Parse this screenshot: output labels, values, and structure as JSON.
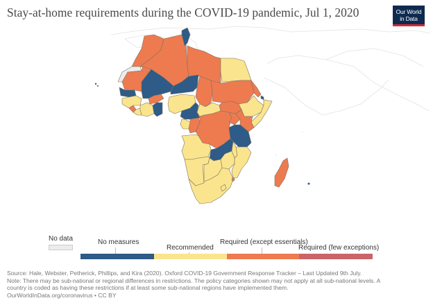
{
  "title": "Stay-at-home requirements during the COVID-19 pandemic, Jul 1, 2020",
  "logo": {
    "line1": "Our World",
    "line2": "in Data"
  },
  "colors": {
    "no_data": "#ececec",
    "no_measures": "#2e5b87",
    "recommended": "#fae58e",
    "required_except_essentials": "#ee7a50",
    "required_few_exceptions": "#c96568",
    "border": "#8a7f6a",
    "background_land": "#ffffff"
  },
  "legend": {
    "no_data": "No data",
    "categories": [
      {
        "label": "No measures",
        "key": "no_measures"
      },
      {
        "label": "Recommended",
        "key": "recommended"
      },
      {
        "label": "Required (except essentials)",
        "key": "required_except_essentials"
      },
      {
        "label": "Required (few exceptions)",
        "key": "required_few_exceptions"
      }
    ]
  },
  "countries": [
    {
      "name": "Morocco",
      "category": "required_except_essentials"
    },
    {
      "name": "Western Sahara",
      "category": "no_data"
    },
    {
      "name": "Algeria",
      "category": "required_except_essentials"
    },
    {
      "name": "Tunisia",
      "category": "no_measures"
    },
    {
      "name": "Libya",
      "category": "required_except_essentials"
    },
    {
      "name": "Egypt",
      "category": "recommended"
    },
    {
      "name": "Mauritania",
      "category": "required_except_essentials"
    },
    {
      "name": "Mali",
      "category": "no_measures"
    },
    {
      "name": "Niger",
      "category": "no_measures"
    },
    {
      "name": "Chad",
      "category": "required_except_essentials"
    },
    {
      "name": "Sudan",
      "category": "required_except_essentials"
    },
    {
      "name": "Senegal",
      "category": "no_measures"
    },
    {
      "name": "Guinea",
      "category": "recommended"
    },
    {
      "name": "Sierra Leone",
      "category": "required_except_essentials"
    },
    {
      "name": "Liberia",
      "category": "recommended"
    },
    {
      "name": "Cote d'Ivoire",
      "category": "recommended"
    },
    {
      "name": "Burkina Faso",
      "category": "required_except_essentials"
    },
    {
      "name": "Ghana",
      "category": "no_measures"
    },
    {
      "name": "Nigeria",
      "category": "recommended"
    },
    {
      "name": "Cameroon",
      "category": "no_measures"
    },
    {
      "name": "Central African Republic",
      "category": "recommended"
    },
    {
      "name": "South Sudan",
      "category": "required_except_essentials"
    },
    {
      "name": "Ethiopia",
      "category": "recommended"
    },
    {
      "name": "Eritrea",
      "category": "required_except_essentials"
    },
    {
      "name": "Djibouti",
      "category": "no_measures"
    },
    {
      "name": "Somalia",
      "category": "recommended"
    },
    {
      "name": "Gabon",
      "category": "recommended"
    },
    {
      "name": "Congo",
      "category": "required_except_essentials"
    },
    {
      "name": "Democratic Republic of Congo",
      "category": "required_except_essentials"
    },
    {
      "name": "Uganda",
      "category": "required_except_essentials"
    },
    {
      "name": "Kenya",
      "category": "required_except_essentials"
    },
    {
      "name": "Tanzania",
      "category": "no_measures"
    },
    {
      "name": "Angola",
      "category": "recommended"
    },
    {
      "name": "Zambia",
      "category": "no_measures"
    },
    {
      "name": "Malawi",
      "category": "recommended"
    },
    {
      "name": "Mozambique",
      "category": "recommended"
    },
    {
      "name": "Zimbabwe",
      "category": "recommended"
    },
    {
      "name": "Namibia",
      "category": "recommended"
    },
    {
      "name": "Botswana",
      "category": "recommended"
    },
    {
      "name": "South Africa",
      "category": "recommended"
    },
    {
      "name": "Eswatini",
      "category": "required_except_essentials"
    },
    {
      "name": "Lesotho",
      "category": "recommended"
    },
    {
      "name": "Madagascar",
      "category": "required_except_essentials"
    }
  ],
  "footer": {
    "source": "Source: Hale, Webster, Petherick, Phillips, and Kira (2020). Oxford COVID-19 Government Response Tracker – Last Updated 9th July.",
    "note_line1": "Note: There may be sub-national or regional differences in restrictions. The policy categories shown may not apply at all sub-national levels. A",
    "note_line2": "country is coded as having these restrictions if at least some sub-national regions have implemented them.",
    "url": "OurWorldInData.org/coronavirus • CC BY"
  }
}
